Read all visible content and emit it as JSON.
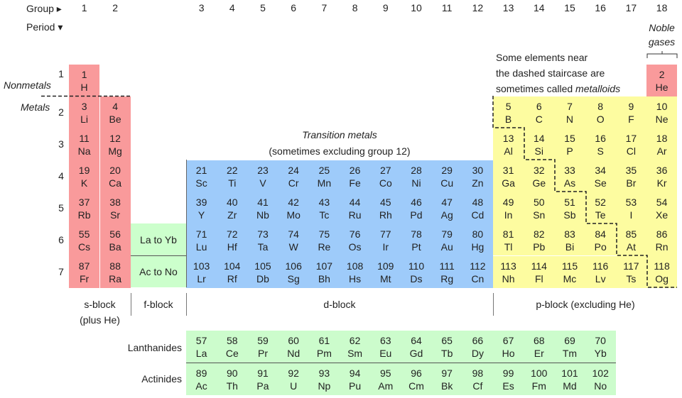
{
  "headers": {
    "group_label": "Group ▸",
    "period_label": "Period ▾",
    "groups": [
      "1",
      "2",
      "3",
      "4",
      "5",
      "6",
      "7",
      "8",
      "9",
      "10",
      "11",
      "12",
      "13",
      "14",
      "15",
      "16",
      "17",
      "18"
    ],
    "periods": [
      "1",
      "2",
      "3",
      "4",
      "5",
      "6",
      "7"
    ]
  },
  "annotations": {
    "nonmetals": "Nonmetals",
    "metals": "Metals",
    "noble_gases_1": "Noble",
    "noble_gases_2": "gases",
    "metalloids_1": "Some elements near",
    "metalloids_2": "the dashed staircase are",
    "metalloids_3a": "sometimes called ",
    "metalloids_3b": "metalloids",
    "transition_1": "Transition metals",
    "transition_2": "(sometimes excluding group 12)"
  },
  "blocks": {
    "s": "s-block",
    "s_sub": "(plus He)",
    "f": "f-block",
    "d": "d-block",
    "p": "p-block (excluding He)",
    "f_row6": "La to Yb",
    "f_row7": "Ac to No",
    "lanthanides": "Lanthanides",
    "actinides": "Actinides"
  },
  "colors": {
    "s": "#f99a9b",
    "d": "#9ecbfa",
    "p": "#fdfca0",
    "f": "#ccfccc"
  },
  "elements": [
    [
      1,
      "H",
      1,
      1,
      "s"
    ],
    [
      2,
      "He",
      18,
      1,
      "s"
    ],
    [
      3,
      "Li",
      1,
      2,
      "s"
    ],
    [
      4,
      "Be",
      2,
      2,
      "s"
    ],
    [
      5,
      "B",
      13,
      2,
      "p"
    ],
    [
      6,
      "C",
      14,
      2,
      "p"
    ],
    [
      7,
      "N",
      15,
      2,
      "p"
    ],
    [
      8,
      "O",
      16,
      2,
      "p"
    ],
    [
      9,
      "F",
      17,
      2,
      "p"
    ],
    [
      10,
      "Ne",
      18,
      2,
      "p"
    ],
    [
      11,
      "Na",
      1,
      3,
      "s"
    ],
    [
      12,
      "Mg",
      2,
      3,
      "s"
    ],
    [
      13,
      "Al",
      13,
      3,
      "p"
    ],
    [
      14,
      "Si",
      14,
      3,
      "p"
    ],
    [
      15,
      "P",
      15,
      3,
      "p"
    ],
    [
      16,
      "S",
      16,
      3,
      "p"
    ],
    [
      17,
      "Cl",
      17,
      3,
      "p"
    ],
    [
      18,
      "Ar",
      18,
      3,
      "p"
    ],
    [
      19,
      "K",
      1,
      4,
      "s"
    ],
    [
      20,
      "Ca",
      2,
      4,
      "s"
    ],
    [
      21,
      "Sc",
      3,
      4,
      "d"
    ],
    [
      22,
      "Ti",
      4,
      4,
      "d"
    ],
    [
      23,
      "V",
      5,
      4,
      "d"
    ],
    [
      24,
      "Cr",
      6,
      4,
      "d"
    ],
    [
      25,
      "Mn",
      7,
      4,
      "d"
    ],
    [
      26,
      "Fe",
      8,
      4,
      "d"
    ],
    [
      27,
      "Co",
      9,
      4,
      "d"
    ],
    [
      28,
      "Ni",
      10,
      4,
      "d"
    ],
    [
      29,
      "Cu",
      11,
      4,
      "d"
    ],
    [
      30,
      "Zn",
      12,
      4,
      "d"
    ],
    [
      31,
      "Ga",
      13,
      4,
      "p"
    ],
    [
      32,
      "Ge",
      14,
      4,
      "p"
    ],
    [
      33,
      "As",
      15,
      4,
      "p"
    ],
    [
      34,
      "Se",
      16,
      4,
      "p"
    ],
    [
      35,
      "Br",
      17,
      4,
      "p"
    ],
    [
      36,
      "Kr",
      18,
      4,
      "p"
    ],
    [
      37,
      "Rb",
      1,
      5,
      "s"
    ],
    [
      38,
      "Sr",
      2,
      5,
      "s"
    ],
    [
      39,
      "Y",
      3,
      5,
      "d"
    ],
    [
      40,
      "Zr",
      4,
      5,
      "d"
    ],
    [
      41,
      "Nb",
      5,
      5,
      "d"
    ],
    [
      42,
      "Mo",
      6,
      5,
      "d"
    ],
    [
      43,
      "Tc",
      7,
      5,
      "d"
    ],
    [
      44,
      "Ru",
      8,
      5,
      "d"
    ],
    [
      45,
      "Rh",
      9,
      5,
      "d"
    ],
    [
      46,
      "Pd",
      10,
      5,
      "d"
    ],
    [
      47,
      "Ag",
      11,
      5,
      "d"
    ],
    [
      48,
      "Cd",
      12,
      5,
      "d"
    ],
    [
      49,
      "In",
      13,
      5,
      "p"
    ],
    [
      50,
      "Sn",
      14,
      5,
      "p"
    ],
    [
      51,
      "Sb",
      15,
      5,
      "p"
    ],
    [
      52,
      "Te",
      16,
      5,
      "p"
    ],
    [
      53,
      "I",
      17,
      5,
      "p"
    ],
    [
      54,
      "Xe",
      18,
      5,
      "p"
    ],
    [
      55,
      "Cs",
      1,
      6,
      "s"
    ],
    [
      56,
      "Ba",
      2,
      6,
      "s"
    ],
    [
      71,
      "Lu",
      3,
      6,
      "d"
    ],
    [
      72,
      "Hf",
      4,
      6,
      "d"
    ],
    [
      73,
      "Ta",
      5,
      6,
      "d"
    ],
    [
      74,
      "W",
      6,
      6,
      "d"
    ],
    [
      75,
      "Re",
      7,
      6,
      "d"
    ],
    [
      76,
      "Os",
      8,
      6,
      "d"
    ],
    [
      77,
      "Ir",
      9,
      6,
      "d"
    ],
    [
      78,
      "Pt",
      10,
      6,
      "d"
    ],
    [
      79,
      "Au",
      11,
      6,
      "d"
    ],
    [
      80,
      "Hg",
      12,
      6,
      "d"
    ],
    [
      81,
      "Tl",
      13,
      6,
      "p"
    ],
    [
      82,
      "Pb",
      14,
      6,
      "p"
    ],
    [
      83,
      "Bi",
      15,
      6,
      "p"
    ],
    [
      84,
      "Po",
      16,
      6,
      "p"
    ],
    [
      85,
      "At",
      17,
      6,
      "p"
    ],
    [
      86,
      "Rn",
      18,
      6,
      "p"
    ],
    [
      87,
      "Fr",
      1,
      7,
      "s"
    ],
    [
      88,
      "Ra",
      2,
      7,
      "s"
    ],
    [
      103,
      "Lr",
      3,
      7,
      "d"
    ],
    [
      104,
      "Rf",
      4,
      7,
      "d"
    ],
    [
      105,
      "Db",
      5,
      7,
      "d"
    ],
    [
      106,
      "Sg",
      6,
      7,
      "d"
    ],
    [
      107,
      "Bh",
      7,
      7,
      "d"
    ],
    [
      108,
      "Hs",
      8,
      7,
      "d"
    ],
    [
      109,
      "Mt",
      9,
      7,
      "d"
    ],
    [
      110,
      "Ds",
      10,
      7,
      "d"
    ],
    [
      111,
      "Rg",
      11,
      7,
      "d"
    ],
    [
      112,
      "Cn",
      12,
      7,
      "d"
    ],
    [
      113,
      "Nh",
      13,
      7,
      "p"
    ],
    [
      114,
      "Fl",
      14,
      7,
      "p"
    ],
    [
      115,
      "Mc",
      15,
      7,
      "p"
    ],
    [
      116,
      "Lv",
      16,
      7,
      "p"
    ],
    [
      117,
      "Ts",
      17,
      7,
      "p"
    ],
    [
      118,
      "Og",
      18,
      7,
      "p"
    ]
  ],
  "lanthanides": [
    [
      57,
      "La"
    ],
    [
      58,
      "Ce"
    ],
    [
      59,
      "Pr"
    ],
    [
      60,
      "Nd"
    ],
    [
      61,
      "Pm"
    ],
    [
      62,
      "Sm"
    ],
    [
      63,
      "Eu"
    ],
    [
      64,
      "Gd"
    ],
    [
      65,
      "Tb"
    ],
    [
      66,
      "Dy"
    ],
    [
      67,
      "Ho"
    ],
    [
      68,
      "Er"
    ],
    [
      69,
      "Tm"
    ],
    [
      70,
      "Yb"
    ]
  ],
  "actinides": [
    [
      89,
      "Ac"
    ],
    [
      90,
      "Th"
    ],
    [
      91,
      "Pa"
    ],
    [
      92,
      "U"
    ],
    [
      93,
      "Np"
    ],
    [
      94,
      "Pu"
    ],
    [
      95,
      "Am"
    ],
    [
      96,
      "Cm"
    ],
    [
      97,
      "Bk"
    ],
    [
      98,
      "Cf"
    ],
    [
      99,
      "Es"
    ],
    [
      100,
      "Fm"
    ],
    [
      101,
      "Md"
    ],
    [
      102,
      "No"
    ]
  ]
}
